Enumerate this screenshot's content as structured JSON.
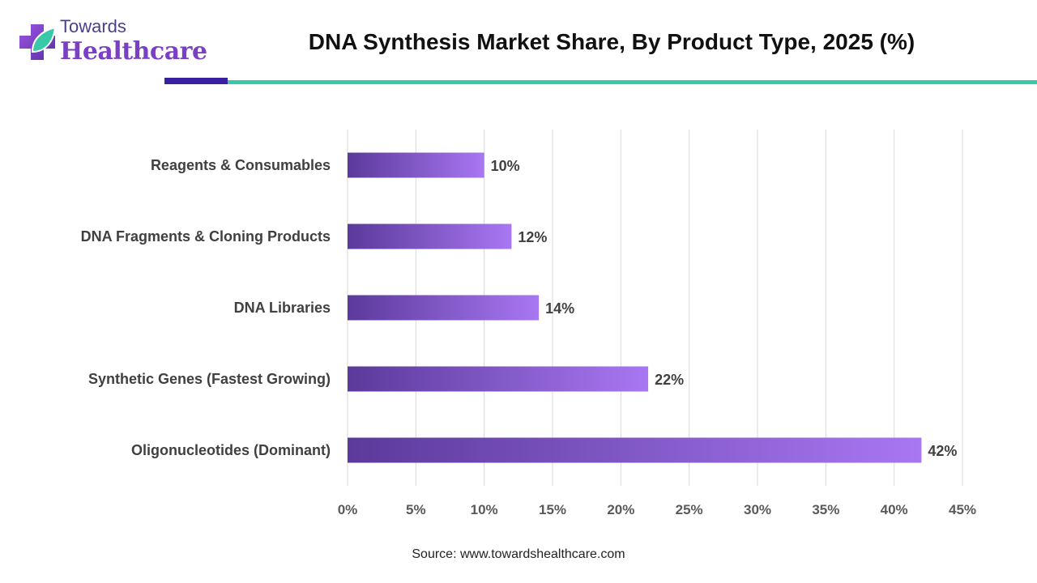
{
  "brand": {
    "line1": "Towards",
    "line2": "Healthcare",
    "icon": "medical-cross-leaf-icon",
    "colors": {
      "purple": "#7a3fc4",
      "teal": "#37c9a8",
      "navy": "#3a1f9e"
    }
  },
  "header": {
    "title": "DNA Synthesis Market Share, By Product Type, 2025 (%)"
  },
  "footer": {
    "source": "Source: www.towardshealthcare.com"
  },
  "chart_data": {
    "type": "bar",
    "orientation": "horizontal",
    "title": "DNA Synthesis Market Share, By Product Type, 2025 (%)",
    "xlabel": "",
    "ylabel": "",
    "categories": [
      "Reagents & Consumables",
      "DNA Fragments & Cloning Products",
      "DNA Libraries",
      "Synthetic Genes (Fastest Growing)",
      "Oligonucleotides (Dominant)"
    ],
    "values": [
      10,
      12,
      14,
      22,
      42
    ],
    "data_labels": [
      "10%",
      "12%",
      "14%",
      "22%",
      "42%"
    ],
    "xlim": [
      0,
      45
    ],
    "x_ticks": [
      0,
      5,
      10,
      15,
      20,
      25,
      30,
      35,
      40,
      45
    ],
    "x_tick_labels": [
      "0%",
      "5%",
      "10%",
      "15%",
      "20%",
      "25%",
      "30%",
      "35%",
      "40%",
      "45%"
    ],
    "grid": "vertical",
    "legend": "none",
    "bar_color_start": "#5b3a9b",
    "bar_color_end": "#a877f2"
  }
}
